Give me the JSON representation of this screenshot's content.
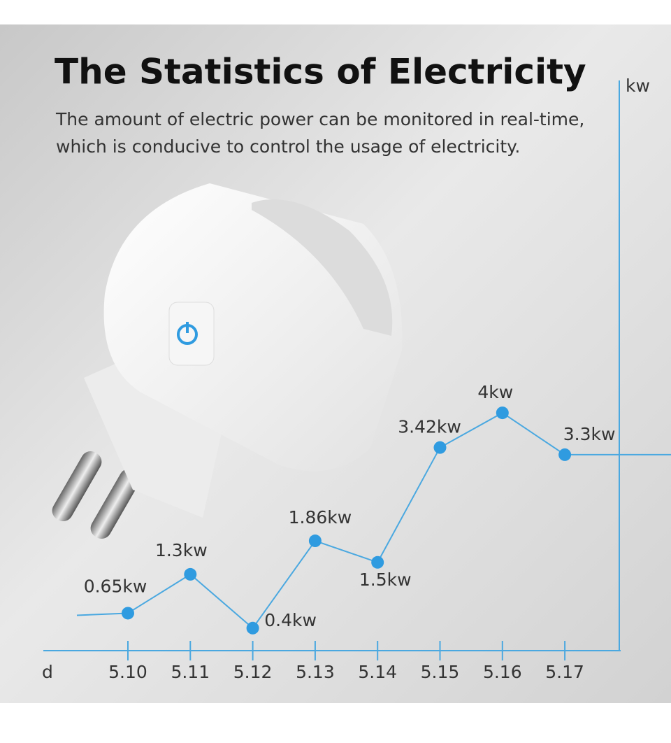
{
  "chart_data": {
    "type": "line",
    "title": "The Statistics of Electricity",
    "subtitle": [
      "The amount of electric power can be monitored in real-time,",
      "which is conducive to control the usage of electricity."
    ],
    "x_label": "d",
    "y_label": "kw",
    "categories": [
      "5.10",
      "5.11",
      "5.12",
      "5.13",
      "5.14",
      "5.15",
      "5.16",
      "5.17"
    ],
    "series": [
      {
        "name": "power",
        "color": "#2f9be0",
        "values": [
          0.65,
          1.3,
          0.4,
          1.86,
          1.5,
          3.42,
          4,
          3.3
        ],
        "value_labels": [
          "0.65kw",
          "1.3kw",
          "0.4kw",
          "1.86kw",
          "1.5kw",
          "3.42kw",
          "4kw",
          "3.3kw"
        ]
      }
    ],
    "ylim": [
      0,
      9.5
    ]
  }
}
